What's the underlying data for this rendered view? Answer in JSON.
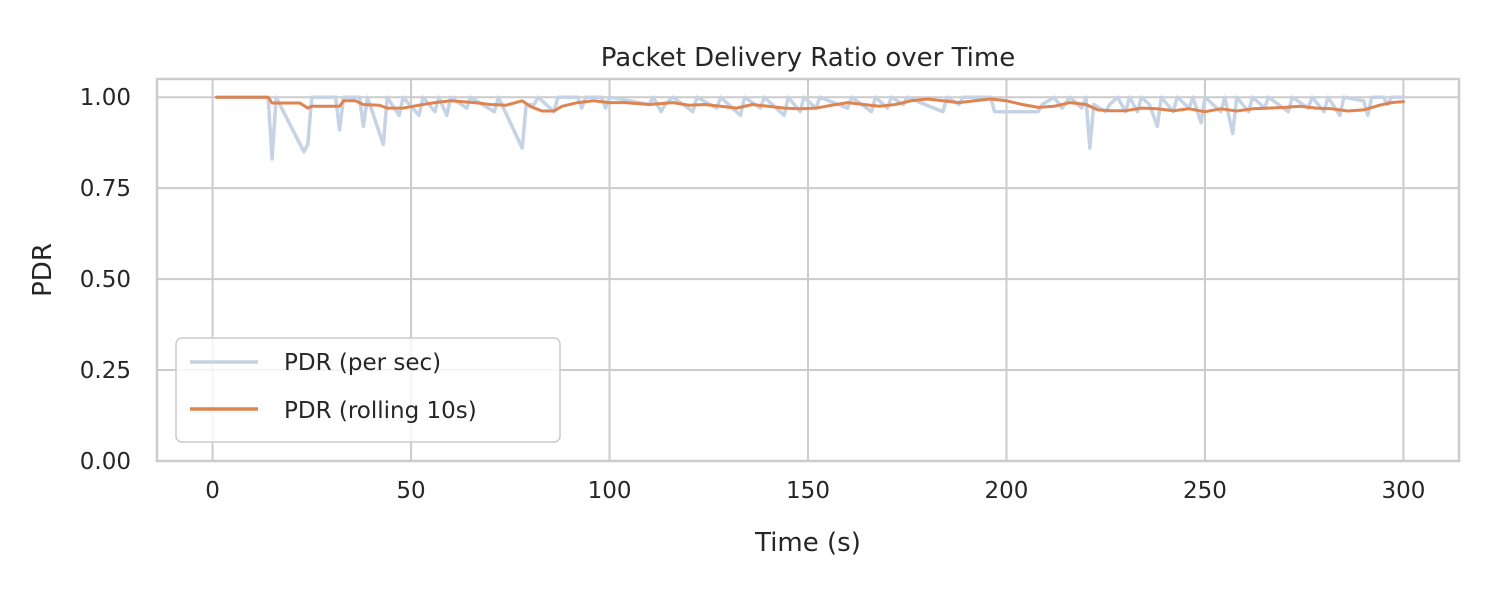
{
  "chart_data": {
    "type": "line",
    "title": "Packet Delivery Ratio over Time",
    "xlabel": "Time (s)",
    "ylabel": "PDR",
    "xlim": [
      -14,
      314
    ],
    "ylim": [
      0,
      1.05
    ],
    "xticks": [
      0,
      50,
      100,
      150,
      200,
      250,
      300
    ],
    "xtick_labels": [
      "0",
      "50",
      "100",
      "150",
      "200",
      "250",
      "300"
    ],
    "yticks": [
      0,
      0.25,
      0.5,
      0.75,
      1.0
    ],
    "ytick_labels": [
      "0.00",
      "0.25",
      "0.50",
      "0.75",
      "1.00"
    ],
    "grid": true,
    "legend_position": "lower-left",
    "series": [
      {
        "name": "PDR (per sec)",
        "color": "#c6d3e5",
        "points": [
          [
            1,
            1.0
          ],
          [
            14,
            1.0
          ],
          [
            15,
            0.83
          ],
          [
            16,
            1.0
          ],
          [
            23,
            0.85
          ],
          [
            24,
            0.87
          ],
          [
            25,
            1.0
          ],
          [
            31,
            1.0
          ],
          [
            32,
            0.91
          ],
          [
            33,
            1.0
          ],
          [
            37,
            1.0
          ],
          [
            38,
            0.92
          ],
          [
            39,
            1.0
          ],
          [
            43,
            0.87
          ],
          [
            44,
            1.0
          ],
          [
            47,
            0.95
          ],
          [
            48,
            1.0
          ],
          [
            52,
            0.95
          ],
          [
            53,
            1.0
          ],
          [
            56,
            0.96
          ],
          [
            57,
            1.0
          ],
          [
            59,
            0.95
          ],
          [
            60,
            1.0
          ],
          [
            64,
            0.97
          ],
          [
            65,
            1.0
          ],
          [
            71,
            0.96
          ],
          [
            72,
            1.0
          ],
          [
            78,
            0.86
          ],
          [
            79,
            0.98
          ],
          [
            81,
            0.98
          ],
          [
            82,
            1.0
          ],
          [
            86,
            0.96
          ],
          [
            87,
            1.0
          ],
          [
            92,
            1.0
          ],
          [
            93,
            0.97
          ],
          [
            94,
            1.0
          ],
          [
            98,
            1.0
          ],
          [
            99,
            0.97
          ],
          [
            100,
            1.0
          ],
          [
            110,
            0.98
          ],
          [
            111,
            1.0
          ],
          [
            113,
            0.96
          ],
          [
            114,
            0.98
          ],
          [
            116,
            1.0
          ],
          [
            121,
            0.96
          ],
          [
            122,
            1.0
          ],
          [
            127,
            0.97
          ],
          [
            128,
            1.0
          ],
          [
            133,
            0.95
          ],
          [
            134,
            1.0
          ],
          [
            138,
            0.97
          ],
          [
            139,
            1.0
          ],
          [
            144,
            0.95
          ],
          [
            145,
            1.0
          ],
          [
            148,
            0.96
          ],
          [
            149,
            1.0
          ],
          [
            152,
            0.97
          ],
          [
            153,
            1.0
          ],
          [
            160,
            0.97
          ],
          [
            161,
            1.0
          ],
          [
            166,
            0.96
          ],
          [
            167,
            1.0
          ],
          [
            170,
            0.97
          ],
          [
            171,
            1.0
          ],
          [
            174,
            0.98
          ],
          [
            175,
            1.0
          ],
          [
            184,
            0.96
          ],
          [
            185,
            1.0
          ],
          [
            188,
            0.98
          ],
          [
            189,
            1.0
          ],
          [
            196,
            1.0
          ],
          [
            197,
            0.96
          ],
          [
            208,
            0.96
          ],
          [
            209,
            0.98
          ],
          [
            212,
            1.0
          ],
          [
            214,
            0.97
          ],
          [
            216,
            1.0
          ],
          [
            219,
            0.97
          ],
          [
            220,
            1.0
          ],
          [
            221,
            0.86
          ],
          [
            222,
            0.98
          ],
          [
            225,
            0.96
          ],
          [
            226,
            0.98
          ],
          [
            228,
            1.0
          ],
          [
            230,
            0.96
          ],
          [
            231,
            1.0
          ],
          [
            233,
            0.96
          ],
          [
            234,
            1.0
          ],
          [
            236,
            0.98
          ],
          [
            238,
            0.92
          ],
          [
            239,
            1.0
          ],
          [
            242,
            0.96
          ],
          [
            243,
            1.0
          ],
          [
            246,
            0.97
          ],
          [
            247,
            1.0
          ],
          [
            249,
            0.93
          ],
          [
            250,
            1.0
          ],
          [
            254,
            0.96
          ],
          [
            255,
            1.0
          ],
          [
            257,
            0.9
          ],
          [
            258,
            1.0
          ],
          [
            261,
            0.96
          ],
          [
            262,
            1.0
          ],
          [
            265,
            0.97
          ],
          [
            266,
            1.0
          ],
          [
            271,
            0.96
          ],
          [
            272,
            1.0
          ],
          [
            276,
            0.97
          ],
          [
            277,
            1.0
          ],
          [
            280,
            0.96
          ],
          [
            281,
            1.0
          ],
          [
            284,
            0.95
          ],
          [
            285,
            1.0
          ],
          [
            290,
            0.99
          ],
          [
            291,
            0.95
          ],
          [
            292,
            1.0
          ],
          [
            295,
            1.0
          ],
          [
            296,
            0.98
          ],
          [
            297,
            1.0
          ],
          [
            300,
            1.0
          ]
        ]
      },
      {
        "name": "PDR (rolling 10s)",
        "color": "#dd8452",
        "points": [
          [
            1,
            1.0
          ],
          [
            14,
            1.0
          ],
          [
            15,
            0.984
          ],
          [
            22,
            0.984
          ],
          [
            24,
            0.97
          ],
          [
            25,
            0.975
          ],
          [
            28,
            0.975
          ],
          [
            32,
            0.975
          ],
          [
            33,
            0.99
          ],
          [
            36,
            0.99
          ],
          [
            38,
            0.98
          ],
          [
            42,
            0.978
          ],
          [
            44,
            0.97
          ],
          [
            48,
            0.97
          ],
          [
            52,
            0.978
          ],
          [
            56,
            0.985
          ],
          [
            60,
            0.99
          ],
          [
            66,
            0.985
          ],
          [
            70,
            0.98
          ],
          [
            74,
            0.978
          ],
          [
            78,
            0.99
          ],
          [
            80,
            0.975
          ],
          [
            83,
            0.962
          ],
          [
            86,
            0.962
          ],
          [
            88,
            0.975
          ],
          [
            92,
            0.985
          ],
          [
            96,
            0.99
          ],
          [
            100,
            0.985
          ],
          [
            104,
            0.985
          ],
          [
            110,
            0.98
          ],
          [
            116,
            0.985
          ],
          [
            120,
            0.978
          ],
          [
            124,
            0.98
          ],
          [
            128,
            0.975
          ],
          [
            132,
            0.97
          ],
          [
            136,
            0.98
          ],
          [
            140,
            0.975
          ],
          [
            144,
            0.97
          ],
          [
            148,
            0.968
          ],
          [
            152,
            0.97
          ],
          [
            156,
            0.978
          ],
          [
            160,
            0.985
          ],
          [
            164,
            0.98
          ],
          [
            168,
            0.975
          ],
          [
            172,
            0.98
          ],
          [
            176,
            0.99
          ],
          [
            180,
            0.995
          ],
          [
            184,
            0.99
          ],
          [
            188,
            0.985
          ],
          [
            192,
            0.99
          ],
          [
            196,
            0.995
          ],
          [
            200,
            0.99
          ],
          [
            204,
            0.98
          ],
          [
            208,
            0.972
          ],
          [
            212,
            0.975
          ],
          [
            216,
            0.985
          ],
          [
            220,
            0.98
          ],
          [
            223,
            0.965
          ],
          [
            226,
            0.963
          ],
          [
            230,
            0.963
          ],
          [
            234,
            0.97
          ],
          [
            238,
            0.968
          ],
          [
            242,
            0.963
          ],
          [
            246,
            0.968
          ],
          [
            250,
            0.96
          ],
          [
            254,
            0.968
          ],
          [
            258,
            0.962
          ],
          [
            262,
            0.968
          ],
          [
            266,
            0.97
          ],
          [
            270,
            0.972
          ],
          [
            274,
            0.975
          ],
          [
            278,
            0.97
          ],
          [
            282,
            0.968
          ],
          [
            286,
            0.962
          ],
          [
            290,
            0.965
          ],
          [
            294,
            0.978
          ],
          [
            297,
            0.985
          ],
          [
            300,
            0.988
          ]
        ]
      }
    ]
  }
}
